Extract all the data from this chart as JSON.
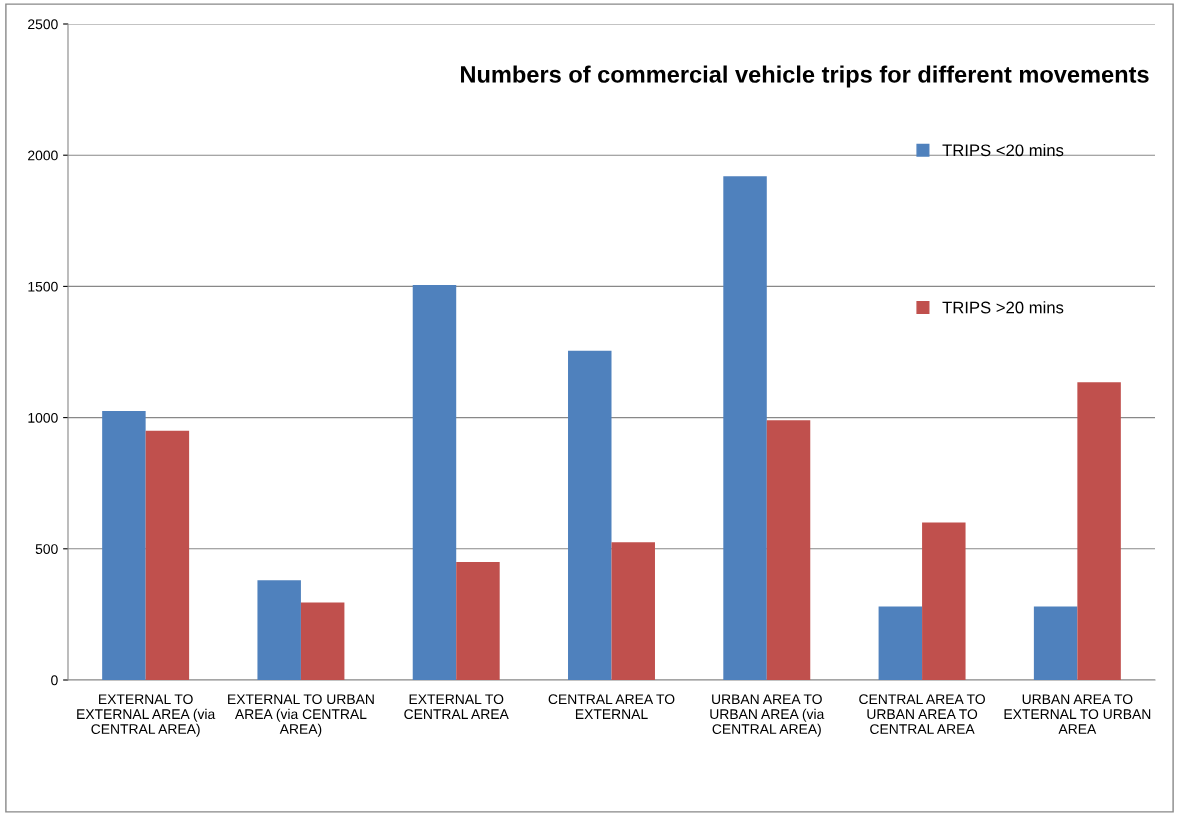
{
  "chart_data": {
    "type": "bar",
    "title": "Numbers of commercial vehicle trips for different movements",
    "categories": [
      "EXTERNAL TO\nEXTERNAL AREA (via\nCENTRAL AREA)",
      "EXTERNAL TO URBAN\nAREA (via CENTRAL\nAREA)",
      "EXTERNAL TO\nCENTRAL AREA",
      "CENTRAL AREA TO\nEXTERNAL",
      "URBAN AREA TO\nURBAN AREA (via\nCENTRAL AREA)",
      "CENTRAL AREA TO\nURBAN AREA TO\nCENTRAL AREA",
      "URBAN AREA TO\nEXTERNAL TO URBAN\nAREA"
    ],
    "series": [
      {
        "name": "TRIPS <20 mins",
        "color": "#4f81bd",
        "values": [
          1025,
          380,
          1505,
          1255,
          1920,
          280,
          280
        ]
      },
      {
        "name": "TRIPS >20 mins",
        "color": "#c0504d",
        "values": [
          950,
          295,
          450,
          525,
          990,
          600,
          1135
        ]
      }
    ],
    "ylim": [
      0,
      2500
    ],
    "yticks": [
      0,
      500,
      1000,
      1500,
      2000,
      2500
    ],
    "grid": "y",
    "legend": "top right"
  }
}
